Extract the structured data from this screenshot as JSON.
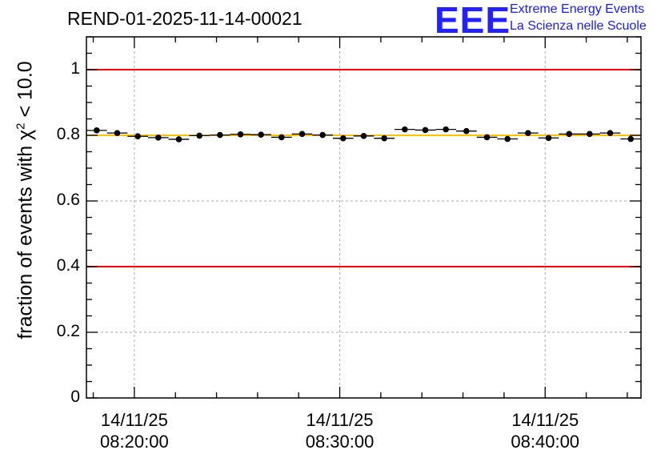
{
  "chart_data": {
    "type": "scatter",
    "title": "REND-01-2025-11-14-00021",
    "ylabel_prefix": "fraction of events with χ",
    "ylabel_sup": "2",
    "ylabel_suffix": " < 10.0",
    "ylim": [
      0,
      1.1
    ],
    "yticks": [
      {
        "value": 0,
        "label": "0"
      },
      {
        "value": 0.2,
        "label": "0.2"
      },
      {
        "value": 0.4,
        "label": "0.4"
      },
      {
        "value": 0.6,
        "label": "0.6"
      },
      {
        "value": 0.8,
        "label": "0.8"
      },
      {
        "value": 1,
        "label": "1"
      }
    ],
    "xlim_minutes": [
      -2.3333,
      24.6667
    ],
    "xticks": [
      {
        "minutes": 0,
        "date": "14/11/25",
        "time": "08:20:00"
      },
      {
        "minutes": 10,
        "date": "14/11/25",
        "time": "08:30:00"
      },
      {
        "minutes": 20,
        "date": "14/11/25",
        "time": "08:40:00"
      }
    ],
    "x_minutes": [
      -1.833,
      -0.833,
      0.167,
      1.167,
      2.167,
      3.167,
      4.167,
      5.167,
      6.167,
      7.167,
      8.167,
      9.167,
      10.167,
      11.167,
      12.167,
      13.167,
      14.167,
      15.167,
      16.167,
      17.167,
      18.167,
      19.167,
      20.167,
      21.167,
      22.167,
      23.167,
      24.167
    ],
    "values": [
      0.815,
      0.807,
      0.797,
      0.793,
      0.788,
      0.799,
      0.801,
      0.803,
      0.802,
      0.794,
      0.804,
      0.801,
      0.791,
      0.798,
      0.791,
      0.818,
      0.816,
      0.818,
      0.813,
      0.794,
      0.789,
      0.807,
      0.792,
      0.804,
      0.804,
      0.807,
      0.789
    ],
    "bin_half_width_minutes": 0.5,
    "reference_lines": [
      {
        "value": 1.0,
        "color": "#ff0000"
      },
      {
        "value": 0.4,
        "color": "#ff0000"
      },
      {
        "value": 0.8,
        "color": "#ffc000"
      }
    ],
    "grid": true
  },
  "logo": {
    "mark": "EEE",
    "line1": "Extreme Energy Events",
    "line2": "La Scienza nelle Scuole"
  }
}
